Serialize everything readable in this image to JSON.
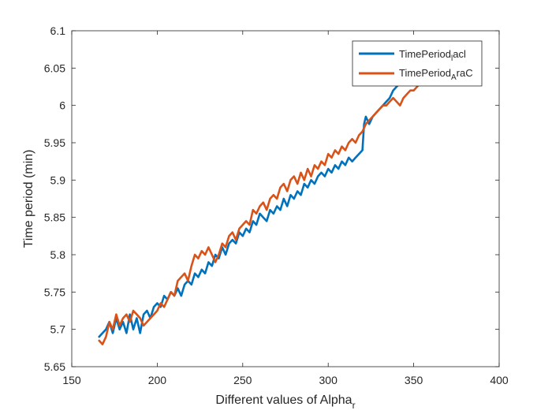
{
  "chart_data": {
    "type": "line",
    "title": "",
    "xlabel": "Different values of Alpha",
    "xlabel_sub": "r",
    "ylabel": "Time period (min)",
    "xlim": [
      150,
      400
    ],
    "ylim": [
      5.65,
      6.1
    ],
    "xticks": [
      "150",
      "200",
      "250",
      "300",
      "350",
      "400"
    ],
    "yticks": [
      "5.65",
      "5.7",
      "5.75",
      "5.8",
      "5.85",
      "5.9",
      "5.95",
      "6",
      "6.05",
      "6.1"
    ],
    "grid": false,
    "legend_position": "top-right",
    "series": [
      {
        "name": "TimePeriod",
        "name_sub": "l",
        "name_suffix": "acl",
        "color": "#0072BD",
        "x": [
          166,
          168,
          170,
          172,
          174,
          176,
          178,
          180,
          182,
          184,
          186,
          188,
          190,
          192,
          194,
          196,
          198,
          200,
          202,
          204,
          206,
          208,
          210,
          212,
          214,
          216,
          218,
          220,
          222,
          224,
          226,
          228,
          230,
          232,
          234,
          236,
          238,
          240,
          242,
          244,
          246,
          248,
          250,
          252,
          254,
          256,
          258,
          260,
          262,
          264,
          266,
          268,
          270,
          272,
          274,
          276,
          278,
          280,
          282,
          284,
          286,
          288,
          290,
          292,
          294,
          296,
          298,
          300,
          302,
          304,
          306,
          308,
          310,
          312,
          314,
          316,
          318,
          320,
          321,
          322,
          324,
          326,
          328,
          330,
          332,
          334,
          336,
          338,
          340,
          342,
          344
        ],
        "y": [
          5.69,
          5.695,
          5.7,
          5.71,
          5.695,
          5.715,
          5.7,
          5.71,
          5.695,
          5.72,
          5.7,
          5.715,
          5.695,
          5.72,
          5.725,
          5.715,
          5.73,
          5.735,
          5.73,
          5.745,
          5.74,
          5.75,
          5.745,
          5.755,
          5.745,
          5.76,
          5.765,
          5.76,
          5.775,
          5.77,
          5.78,
          5.775,
          5.79,
          5.785,
          5.8,
          5.795,
          5.81,
          5.8,
          5.815,
          5.82,
          5.815,
          5.83,
          5.825,
          5.835,
          5.83,
          5.845,
          5.84,
          5.855,
          5.85,
          5.845,
          5.86,
          5.855,
          5.865,
          5.86,
          5.875,
          5.865,
          5.88,
          5.875,
          5.885,
          5.88,
          5.895,
          5.89,
          5.9,
          5.895,
          5.905,
          5.91,
          5.905,
          5.915,
          5.91,
          5.92,
          5.915,
          5.925,
          5.92,
          5.93,
          5.925,
          5.93,
          5.935,
          5.94,
          5.975,
          5.985,
          5.975,
          5.985,
          5.99,
          5.995,
          6.0,
          6.005,
          6.01,
          6.02,
          6.025,
          6.03,
          6.035
        ]
      },
      {
        "name": "TimePeriod",
        "name_sub": "A",
        "name_suffix": "raC",
        "color": "#D95319",
        "x": [
          166,
          168,
          170,
          172,
          174,
          176,
          178,
          180,
          182,
          184,
          186,
          188,
          190,
          192,
          194,
          196,
          198,
          200,
          202,
          204,
          206,
          208,
          210,
          212,
          214,
          216,
          218,
          220,
          222,
          224,
          226,
          228,
          230,
          232,
          234,
          236,
          238,
          240,
          242,
          244,
          246,
          248,
          250,
          252,
          254,
          256,
          258,
          260,
          262,
          264,
          266,
          268,
          270,
          272,
          274,
          276,
          278,
          280,
          282,
          284,
          286,
          288,
          290,
          292,
          294,
          296,
          298,
          300,
          302,
          304,
          306,
          308,
          310,
          312,
          314,
          316,
          318,
          320,
          322,
          324,
          326,
          328,
          330,
          332,
          334,
          336,
          338,
          340,
          342,
          344,
          346,
          348,
          350,
          352,
          354
        ],
        "y": [
          5.685,
          5.68,
          5.69,
          5.71,
          5.7,
          5.72,
          5.705,
          5.715,
          5.72,
          5.71,
          5.725,
          5.72,
          5.715,
          5.705,
          5.71,
          5.715,
          5.72,
          5.725,
          5.735,
          5.73,
          5.74,
          5.75,
          5.745,
          5.765,
          5.77,
          5.775,
          5.765,
          5.785,
          5.8,
          5.795,
          5.805,
          5.8,
          5.81,
          5.8,
          5.79,
          5.8,
          5.815,
          5.81,
          5.825,
          5.83,
          5.82,
          5.835,
          5.84,
          5.845,
          5.84,
          5.86,
          5.855,
          5.865,
          5.87,
          5.86,
          5.875,
          5.88,
          5.875,
          5.89,
          5.895,
          5.885,
          5.9,
          5.905,
          5.895,
          5.91,
          5.9,
          5.915,
          5.905,
          5.92,
          5.915,
          5.925,
          5.92,
          5.935,
          5.93,
          5.94,
          5.935,
          5.945,
          5.94,
          5.95,
          5.955,
          5.95,
          5.96,
          5.965,
          5.975,
          5.98,
          5.985,
          5.99,
          5.995,
          6.0,
          6.0,
          6.005,
          6.01,
          6.005,
          6.0,
          6.01,
          6.015,
          6.02,
          6.02,
          6.025,
          6.03
        ]
      }
    ]
  }
}
